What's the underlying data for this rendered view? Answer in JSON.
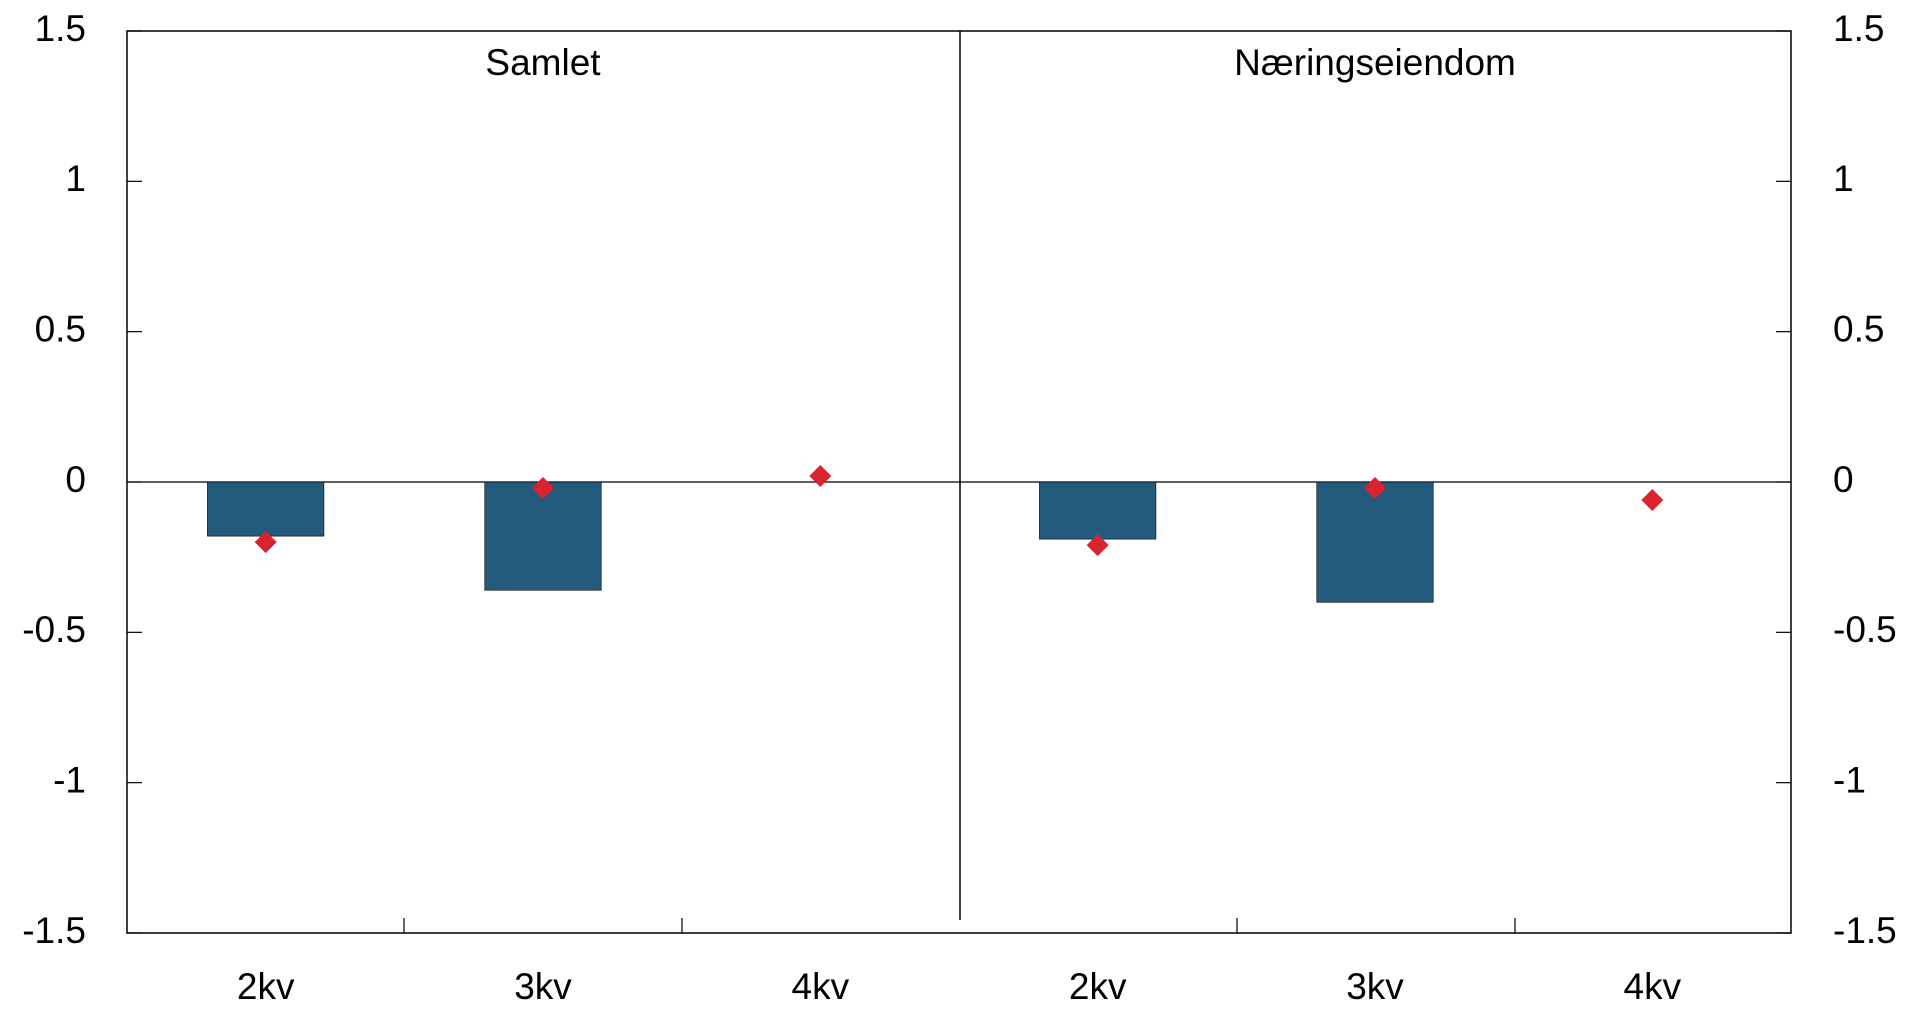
{
  "chart_data": {
    "type": "bar",
    "panels": [
      "Samlet",
      "Næringseiendom"
    ],
    "categories": [
      "2kv",
      "3kv",
      "4kv",
      "2kv",
      "3kv",
      "4kv"
    ],
    "series": [
      {
        "type": "bar",
        "color": "#245b7c",
        "values": [
          -0.18,
          -0.36,
          null,
          -0.19,
          -0.4,
          null
        ]
      },
      {
        "type": "scatter",
        "marker": "diamond",
        "color": "#d9232e",
        "values": [
          -0.2,
          -0.02,
          0.02,
          -0.21,
          -0.02,
          -0.06
        ]
      }
    ],
    "ylim": [
      -1.5,
      1.5
    ],
    "yticks": [
      1.5,
      1,
      0.5,
      0,
      -0.5,
      -1,
      -1.5
    ],
    "y2lim": [
      -1.5,
      1.5
    ],
    "y2ticks": [
      1.5,
      1,
      0.5,
      0,
      -0.5,
      -1,
      -1.5
    ]
  }
}
